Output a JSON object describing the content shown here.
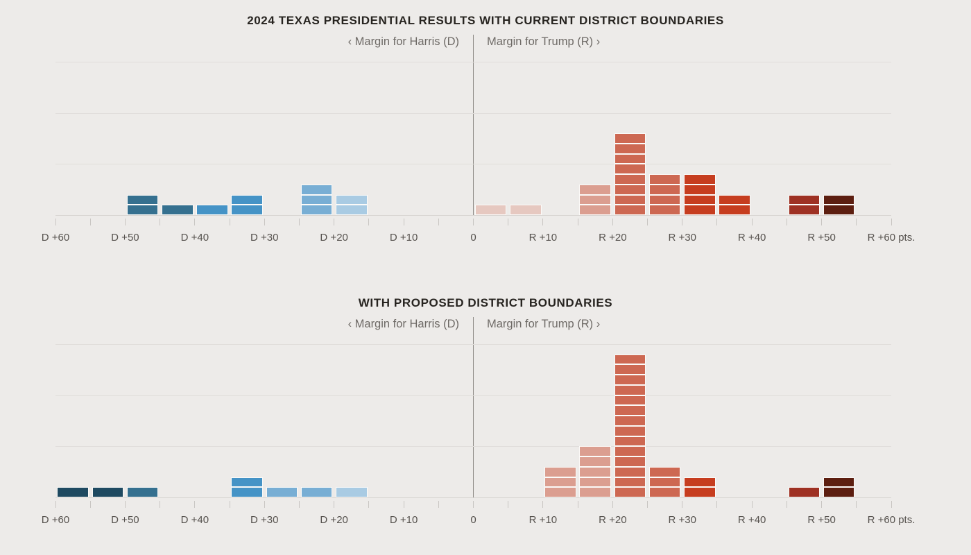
{
  "colors": {
    "background": "#edebe9",
    "gridline": "#e0ddda",
    "axis_line": "#d7d4d1",
    "divider_line": "#8f8c88",
    "tick_mark": "#c8c5c2",
    "title_text": "#272420",
    "label_text": "#6e6a66",
    "tick_label_text": "#56524e",
    "unit_square_gap": "#fbfaf8"
  },
  "chart_data": [
    {
      "type": "bar",
      "subtype": "unit-square-histogram",
      "title": "2024 TEXAS PRESIDENTIAL RESULTS WITH CURRENT DISTRICT BOUNDARIES",
      "left_direction_label": "‹ Margin for Harris (D)",
      "right_direction_label": "Margin for Trump (R) ›",
      "x_axis": {
        "min": -60,
        "max": 60,
        "minor_tick_step": 5,
        "major_tick_step": 10,
        "tick_labels": [
          "D +60",
          "D +50",
          "D +40",
          "D +30",
          "D +20",
          "D +10",
          "0",
          "R +10",
          "R +20",
          "R +30",
          "R +40",
          "R +50",
          "R +60 pts."
        ]
      },
      "y_axis": {
        "units_per_gridline": 5,
        "max_units": 15,
        "gridlines_visible": 3
      },
      "bins": [
        {
          "range": "D+45 to D+50",
          "from": -50,
          "to": -45,
          "count": 2,
          "color": "#35708F"
        },
        {
          "range": "D+40 to D+45",
          "from": -45,
          "to": -40,
          "count": 1,
          "color": "#35708F"
        },
        {
          "range": "D+35 to D+40",
          "from": -40,
          "to": -35,
          "count": 1,
          "color": "#4593C6"
        },
        {
          "range": "D+30 to D+35",
          "from": -35,
          "to": -30,
          "count": 2,
          "color": "#4593C6"
        },
        {
          "range": "D+20 to D+25",
          "from": -25,
          "to": -20,
          "count": 3,
          "color": "#78AED4"
        },
        {
          "range": "D+15 to D+20",
          "from": -20,
          "to": -15,
          "count": 2,
          "color": "#A9CBE3"
        },
        {
          "range": "R+0 to R+5",
          "from": 0,
          "to": 5,
          "count": 1,
          "color": "#E6C8C0"
        },
        {
          "range": "R+5 to R+10",
          "from": 5,
          "to": 10,
          "count": 1,
          "color": "#E6C8C0"
        },
        {
          "range": "R+15 to R+20",
          "from": 15,
          "to": 20,
          "count": 3,
          "color": "#DB9E90"
        },
        {
          "range": "R+20 to R+25",
          "from": 20,
          "to": 25,
          "count": 8,
          "color": "#CD6852"
        },
        {
          "range": "R+25 to R+30",
          "from": 25,
          "to": 30,
          "count": 4,
          "color": "#CD6852"
        },
        {
          "range": "R+30 to R+35",
          "from": 30,
          "to": 35,
          "count": 4,
          "color": "#C63D1F"
        },
        {
          "range": "R+35 to R+40",
          "from": 35,
          "to": 40,
          "count": 2,
          "color": "#C63D1F"
        },
        {
          "range": "R+45 to R+50",
          "from": 45,
          "to": 50,
          "count": 2,
          "color": "#9E3123"
        },
        {
          "range": "R+50 to R+55",
          "from": 50,
          "to": 55,
          "count": 2,
          "color": "#5C1E10"
        }
      ]
    },
    {
      "type": "bar",
      "subtype": "unit-square-histogram",
      "title": "WITH PROPOSED DISTRICT BOUNDARIES",
      "left_direction_label": "‹ Margin for Harris (D)",
      "right_direction_label": "Margin for Trump (R) ›",
      "x_axis": {
        "min": -60,
        "max": 60,
        "minor_tick_step": 5,
        "major_tick_step": 10,
        "tick_labels": [
          "D +60",
          "D +50",
          "D +40",
          "D +30",
          "D +20",
          "D +10",
          "0",
          "R +10",
          "R +20",
          "R +30",
          "R +40",
          "R +50",
          "R +60 pts."
        ]
      },
      "y_axis": {
        "units_per_gridline": 5,
        "max_units": 15,
        "gridlines_visible": 3
      },
      "bins": [
        {
          "range": "D+55 to D+60",
          "from": -60,
          "to": -55,
          "count": 1,
          "color": "#1F4A61"
        },
        {
          "range": "D+50 to D+55",
          "from": -55,
          "to": -50,
          "count": 1,
          "color": "#1F4A61"
        },
        {
          "range": "D+45 to D+50",
          "from": -50,
          "to": -45,
          "count": 1,
          "color": "#35708F"
        },
        {
          "range": "D+30 to D+35",
          "from": -35,
          "to": -30,
          "count": 2,
          "color": "#4593C6"
        },
        {
          "range": "D+25 to D+30",
          "from": -30,
          "to": -25,
          "count": 1,
          "color": "#78AED4"
        },
        {
          "range": "D+20 to D+25",
          "from": -25,
          "to": -20,
          "count": 1,
          "color": "#78AED4"
        },
        {
          "range": "D+15 to D+20",
          "from": -20,
          "to": -15,
          "count": 1,
          "color": "#A9CBE3"
        },
        {
          "range": "R+10 to R+15",
          "from": 10,
          "to": 15,
          "count": 3,
          "color": "#DB9E90"
        },
        {
          "range": "R+15 to R+20",
          "from": 15,
          "to": 20,
          "count": 5,
          "color": "#DB9E90"
        },
        {
          "range": "R+20 to R+25",
          "from": 20,
          "to": 25,
          "count": 14,
          "color": "#CD6852"
        },
        {
          "range": "R+25 to R+30",
          "from": 25,
          "to": 30,
          "count": 3,
          "color": "#CD6852"
        },
        {
          "range": "R+30 to R+35",
          "from": 30,
          "to": 35,
          "count": 2,
          "color": "#C63D1F"
        },
        {
          "range": "R+45 to R+50",
          "from": 45,
          "to": 50,
          "count": 1,
          "color": "#9E3123"
        },
        {
          "range": "R+50 to R+55",
          "from": 50,
          "to": 55,
          "count": 2,
          "color": "#5C1E10"
        }
      ]
    }
  ]
}
